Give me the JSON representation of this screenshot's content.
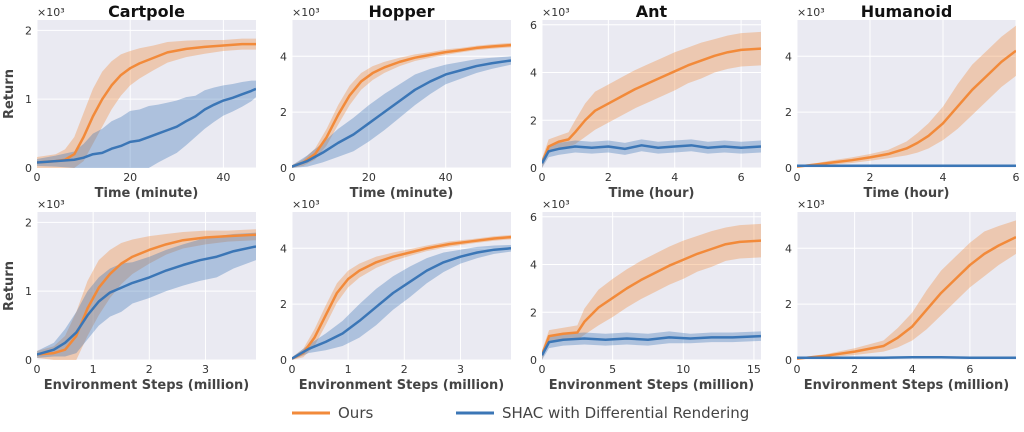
{
  "legend": {
    "entries": [
      {
        "label": "Ours",
        "color": "#f28a3a"
      },
      {
        "label": "SHAC with Differential Rendering",
        "color": "#3b76b6"
      }
    ],
    "placement": "bottom-center"
  },
  "chart_data": [
    {
      "type": "line",
      "row": 0,
      "col": 0,
      "title": "Cartpole",
      "xlabel": "Time (minute)",
      "ylabel": "Return",
      "multiplier": "×10³",
      "xlim": [
        0,
        47
      ],
      "ylim": [
        0,
        2.15
      ],
      "xticks": [
        0,
        20,
        40
      ],
      "yticks": [
        0,
        1,
        2
      ],
      "series": [
        {
          "name": "Ours",
          "color": "#f28a3a",
          "x": [
            0,
            4,
            6,
            8,
            10,
            12,
            14,
            16,
            18,
            20,
            22,
            25,
            28,
            32,
            36,
            40,
            44,
            47
          ],
          "y": [
            0.08,
            0.1,
            0.12,
            0.2,
            0.45,
            0.75,
            1.0,
            1.2,
            1.35,
            1.45,
            1.52,
            1.6,
            1.68,
            1.73,
            1.76,
            1.78,
            1.8,
            1.8
          ],
          "band": [
            0.08,
            0.1,
            0.15,
            0.25,
            0.35,
            0.4,
            0.4,
            0.35,
            0.3,
            0.25,
            0.22,
            0.18,
            0.15,
            0.12,
            0.1,
            0.08,
            0.08,
            0.08
          ]
        },
        {
          "name": "SHAC with Differential Rendering",
          "color": "#3b76b6",
          "x": [
            0,
            4,
            8,
            10,
            12,
            14,
            16,
            18,
            20,
            22,
            24,
            26,
            28,
            30,
            32,
            34,
            36,
            38,
            40,
            42,
            44,
            46,
            47
          ],
          "y": [
            0.08,
            0.1,
            0.12,
            0.15,
            0.2,
            0.22,
            0.28,
            0.32,
            0.38,
            0.4,
            0.45,
            0.5,
            0.55,
            0.6,
            0.68,
            0.75,
            0.85,
            0.92,
            0.98,
            1.02,
            1.07,
            1.12,
            1.15
          ],
          "band": [
            0.05,
            0.08,
            0.12,
            0.2,
            0.3,
            0.35,
            0.4,
            0.42,
            0.45,
            0.45,
            0.45,
            0.42,
            0.4,
            0.38,
            0.35,
            0.3,
            0.28,
            0.25,
            0.22,
            0.2,
            0.18,
            0.15,
            0.12
          ]
        }
      ]
    },
    {
      "type": "line",
      "row": 0,
      "col": 1,
      "title": "Hopper",
      "xlabel": "Time (minute)",
      "ylabel": "",
      "multiplier": "×10³",
      "xlim": [
        0,
        57
      ],
      "ylim": [
        0,
        5.3
      ],
      "xticks": [
        0,
        20,
        40
      ],
      "yticks": [
        0,
        2,
        4
      ],
      "series": [
        {
          "name": "Ours",
          "color": "#f28a3a",
          "x": [
            0,
            3,
            6,
            9,
            12,
            15,
            18,
            21,
            24,
            28,
            32,
            36,
            40,
            44,
            48,
            52,
            57
          ],
          "y": [
            0.05,
            0.2,
            0.5,
            1.1,
            1.9,
            2.6,
            3.1,
            3.4,
            3.6,
            3.8,
            3.95,
            4.05,
            4.15,
            4.22,
            4.3,
            4.35,
            4.4
          ],
          "band": [
            0.05,
            0.12,
            0.2,
            0.3,
            0.35,
            0.35,
            0.3,
            0.25,
            0.2,
            0.15,
            0.12,
            0.1,
            0.1,
            0.08,
            0.08,
            0.08,
            0.08
          ]
        },
        {
          "name": "SHAC with Differential Rendering",
          "color": "#3b76b6",
          "x": [
            0,
            4,
            8,
            12,
            16,
            20,
            24,
            28,
            32,
            36,
            40,
            44,
            48,
            52,
            57
          ],
          "y": [
            0.05,
            0.25,
            0.55,
            0.9,
            1.2,
            1.6,
            2.0,
            2.4,
            2.8,
            3.1,
            3.35,
            3.5,
            3.65,
            3.75,
            3.85
          ],
          "band": [
            0.05,
            0.2,
            0.35,
            0.5,
            0.6,
            0.65,
            0.65,
            0.6,
            0.55,
            0.45,
            0.35,
            0.3,
            0.25,
            0.2,
            0.15
          ]
        }
      ]
    },
    {
      "type": "line",
      "row": 0,
      "col": 2,
      "title": "Ant",
      "xlabel": "Time (hour)",
      "ylabel": "",
      "multiplier": "×10³",
      "xlim": [
        0,
        6.6
      ],
      "ylim": [
        0,
        6.2
      ],
      "xticks": [
        0,
        2,
        4,
        6
      ],
      "yticks": [
        0,
        2,
        4,
        6
      ],
      "series": [
        {
          "name": "Ours",
          "color": "#f28a3a",
          "x": [
            0,
            0.2,
            0.5,
            0.8,
            1.0,
            1.3,
            1.6,
            2.0,
            2.4,
            2.8,
            3.2,
            3.6,
            4.0,
            4.4,
            4.8,
            5.2,
            5.6,
            6.0,
            6.6
          ],
          "y": [
            0.2,
            0.9,
            1.1,
            1.2,
            1.5,
            2.0,
            2.4,
            2.7,
            3.0,
            3.3,
            3.55,
            3.8,
            4.05,
            4.3,
            4.5,
            4.7,
            4.85,
            4.95,
            5.0
          ],
          "band": [
            0.2,
            0.3,
            0.25,
            0.3,
            0.5,
            0.7,
            0.8,
            0.8,
            0.8,
            0.8,
            0.8,
            0.8,
            0.8,
            0.75,
            0.75,
            0.7,
            0.7,
            0.7,
            0.7
          ]
        },
        {
          "name": "SHAC with Differential Rendering",
          "color": "#3b76b6",
          "x": [
            0,
            0.2,
            0.5,
            1.0,
            1.5,
            2.0,
            2.5,
            3.0,
            3.5,
            4.0,
            4.5,
            5.0,
            5.5,
            6.0,
            6.6
          ],
          "y": [
            0.2,
            0.7,
            0.8,
            0.9,
            0.85,
            0.9,
            0.8,
            0.95,
            0.85,
            0.9,
            0.95,
            0.85,
            0.9,
            0.85,
            0.9
          ],
          "band": [
            0.2,
            0.25,
            0.25,
            0.25,
            0.25,
            0.25,
            0.25,
            0.25,
            0.25,
            0.25,
            0.25,
            0.25,
            0.25,
            0.25,
            0.25
          ]
        }
      ]
    },
    {
      "type": "line",
      "row": 0,
      "col": 3,
      "title": "Humanoid",
      "xlabel": "Time (hour)",
      "ylabel": "",
      "multiplier": "×10³",
      "xlim": [
        0,
        6
      ],
      "ylim": [
        0,
        5.3
      ],
      "xticks": [
        0,
        2,
        4,
        6
      ],
      "yticks": [
        0,
        2,
        4
      ],
      "series": [
        {
          "name": "Ours",
          "color": "#f28a3a",
          "x": [
            0,
            0.5,
            1.0,
            1.5,
            2.0,
            2.5,
            3.0,
            3.3,
            3.6,
            4.0,
            4.4,
            4.8,
            5.2,
            5.6,
            6.0
          ],
          "y": [
            0.05,
            0.12,
            0.2,
            0.28,
            0.38,
            0.5,
            0.7,
            0.9,
            1.15,
            1.6,
            2.2,
            2.8,
            3.3,
            3.8,
            4.2
          ],
          "band": [
            0.03,
            0.05,
            0.08,
            0.1,
            0.12,
            0.15,
            0.25,
            0.35,
            0.45,
            0.6,
            0.8,
            0.9,
            0.9,
            0.9,
            0.9
          ]
        },
        {
          "name": "SHAC with Differential Rendering",
          "color": "#3b76b6",
          "x": [
            0,
            1,
            2,
            3,
            4,
            5,
            6
          ],
          "y": [
            0.08,
            0.08,
            0.08,
            0.08,
            0.08,
            0.08,
            0.08
          ],
          "band": [
            0.02,
            0.02,
            0.02,
            0.02,
            0.02,
            0.02,
            0.02
          ]
        }
      ]
    },
    {
      "type": "line",
      "row": 1,
      "col": 0,
      "title": "",
      "xlabel": "Environment Steps (million)",
      "ylabel": "Return",
      "multiplier": "×10³",
      "xlim": [
        0,
        3.9
      ],
      "ylim": [
        0,
        2.15
      ],
      "xticks": [
        0,
        1,
        2,
        3
      ],
      "yticks": [
        0,
        1,
        2
      ],
      "series": [
        {
          "name": "Ours",
          "color": "#f28a3a",
          "x": [
            0,
            0.3,
            0.5,
            0.7,
            0.9,
            1.1,
            1.3,
            1.5,
            1.7,
            2.0,
            2.3,
            2.6,
            3.0,
            3.4,
            3.9
          ],
          "y": [
            0.08,
            0.1,
            0.15,
            0.35,
            0.75,
            1.05,
            1.25,
            1.4,
            1.5,
            1.6,
            1.68,
            1.74,
            1.78,
            1.8,
            1.82
          ],
          "band": [
            0.05,
            0.1,
            0.2,
            0.35,
            0.4,
            0.4,
            0.35,
            0.3,
            0.25,
            0.2,
            0.15,
            0.12,
            0.1,
            0.08,
            0.08
          ]
        },
        {
          "name": "SHAC with Differential Rendering",
          "color": "#3b76b6",
          "x": [
            0,
            0.3,
            0.5,
            0.7,
            0.9,
            1.1,
            1.3,
            1.5,
            1.7,
            2.0,
            2.3,
            2.6,
            2.9,
            3.2,
            3.5,
            3.9
          ],
          "y": [
            0.08,
            0.15,
            0.25,
            0.4,
            0.65,
            0.85,
            0.98,
            1.05,
            1.12,
            1.2,
            1.3,
            1.38,
            1.45,
            1.5,
            1.58,
            1.65
          ],
          "band": [
            0.05,
            0.1,
            0.2,
            0.3,
            0.35,
            0.35,
            0.35,
            0.35,
            0.3,
            0.3,
            0.3,
            0.3,
            0.3,
            0.3,
            0.25,
            0.2
          ]
        }
      ]
    },
    {
      "type": "line",
      "row": 1,
      "col": 1,
      "title": "",
      "xlabel": "Environment Steps (million)",
      "ylabel": "",
      "multiplier": "×10³",
      "xlim": [
        0,
        3.9
      ],
      "ylim": [
        0,
        5.3
      ],
      "xticks": [
        0,
        1,
        2,
        3
      ],
      "yticks": [
        0,
        2,
        4
      ],
      "series": [
        {
          "name": "Ours",
          "color": "#f28a3a",
          "x": [
            0,
            0.2,
            0.4,
            0.6,
            0.8,
            1.0,
            1.2,
            1.5,
            1.8,
            2.1,
            2.4,
            2.8,
            3.2,
            3.6,
            3.9
          ],
          "y": [
            0.05,
            0.25,
            0.8,
            1.6,
            2.4,
            2.9,
            3.2,
            3.5,
            3.7,
            3.85,
            4.0,
            4.15,
            4.25,
            4.35,
            4.4
          ],
          "band": [
            0.05,
            0.15,
            0.3,
            0.35,
            0.35,
            0.3,
            0.25,
            0.2,
            0.15,
            0.12,
            0.1,
            0.1,
            0.08,
            0.08,
            0.08
          ]
        },
        {
          "name": "SHAC with Differential Rendering",
          "color": "#3b76b6",
          "x": [
            0,
            0.3,
            0.6,
            0.9,
            1.2,
            1.5,
            1.8,
            2.1,
            2.4,
            2.7,
            3.0,
            3.3,
            3.6,
            3.9
          ],
          "y": [
            0.05,
            0.4,
            0.65,
            0.95,
            1.4,
            1.9,
            2.4,
            2.8,
            3.2,
            3.5,
            3.7,
            3.85,
            3.95,
            4.0
          ],
          "band": [
            0.05,
            0.15,
            0.3,
            0.45,
            0.6,
            0.65,
            0.6,
            0.55,
            0.45,
            0.35,
            0.25,
            0.2,
            0.15,
            0.12
          ]
        }
      ]
    },
    {
      "type": "line",
      "row": 1,
      "col": 2,
      "title": "",
      "xlabel": "Environment Steps (million)",
      "ylabel": "",
      "multiplier": "×10³",
      "xlim": [
        0,
        15.5
      ],
      "ylim": [
        0,
        6.2
      ],
      "xticks": [
        0,
        5,
        10,
        15
      ],
      "yticks": [
        0,
        2,
        4,
        6
      ],
      "series": [
        {
          "name": "Ours",
          "color": "#f28a3a",
          "x": [
            0,
            0.5,
            1.5,
            2.5,
            3.0,
            4.0,
            5.0,
            6.0,
            7.0,
            8.0,
            9.0,
            10.0,
            11.0,
            12.0,
            13.0,
            14.0,
            15.5
          ],
          "y": [
            0.2,
            1.0,
            1.1,
            1.15,
            1.6,
            2.2,
            2.6,
            3.0,
            3.35,
            3.65,
            3.95,
            4.2,
            4.45,
            4.65,
            4.85,
            4.95,
            5.0
          ],
          "band": [
            0.2,
            0.25,
            0.25,
            0.3,
            0.55,
            0.75,
            0.8,
            0.8,
            0.8,
            0.8,
            0.8,
            0.8,
            0.75,
            0.75,
            0.7,
            0.7,
            0.7
          ]
        },
        {
          "name": "SHAC with Differential Rendering",
          "color": "#3b76b6",
          "x": [
            0,
            0.5,
            1.5,
            3,
            4.5,
            6,
            7.5,
            9,
            10.5,
            12,
            13.5,
            15.5
          ],
          "y": [
            0.2,
            0.75,
            0.85,
            0.9,
            0.85,
            0.9,
            0.85,
            0.95,
            0.9,
            0.95,
            0.95,
            1.0
          ],
          "band": [
            0.2,
            0.25,
            0.25,
            0.25,
            0.25,
            0.25,
            0.25,
            0.25,
            0.2,
            0.2,
            0.2,
            0.2
          ]
        }
      ]
    },
    {
      "type": "line",
      "row": 1,
      "col": 3,
      "title": "",
      "xlabel": "Environment Steps (million)",
      "ylabel": "",
      "multiplier": "×10³",
      "xlim": [
        0,
        7.6
      ],
      "ylim": [
        0,
        5.3
      ],
      "xticks": [
        0,
        2,
        4,
        6
      ],
      "yticks": [
        0,
        2,
        4
      ],
      "series": [
        {
          "name": "Ours",
          "color": "#f28a3a",
          "x": [
            0,
            1,
            2,
            3,
            3.5,
            4,
            4.5,
            5,
            5.5,
            6,
            6.5,
            7,
            7.6
          ],
          "y": [
            0.05,
            0.15,
            0.3,
            0.5,
            0.8,
            1.2,
            1.8,
            2.4,
            2.9,
            3.4,
            3.8,
            4.1,
            4.4
          ],
          "band": [
            0.03,
            0.06,
            0.12,
            0.2,
            0.35,
            0.5,
            0.7,
            0.8,
            0.8,
            0.8,
            0.8,
            0.7,
            0.6
          ]
        },
        {
          "name": "SHAC with Differential Rendering",
          "color": "#3b76b6",
          "x": [
            0,
            1,
            2,
            3,
            4,
            5,
            6,
            7,
            7.6
          ],
          "y": [
            0.08,
            0.08,
            0.08,
            0.08,
            0.1,
            0.1,
            0.08,
            0.08,
            0.08
          ],
          "band": [
            0.02,
            0.02,
            0.02,
            0.02,
            0.02,
            0.02,
            0.02,
            0.02,
            0.02
          ]
        }
      ]
    }
  ]
}
